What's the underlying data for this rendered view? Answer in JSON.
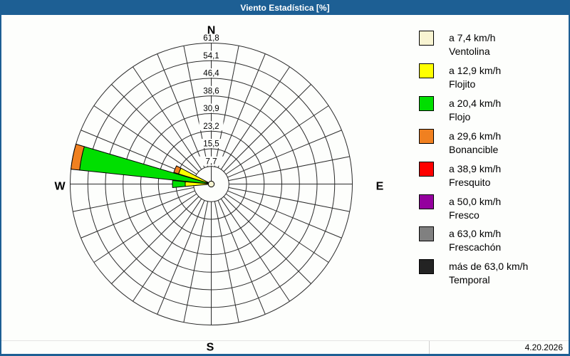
{
  "window": {
    "title": "Viento Estadística [%]",
    "status_date": "4.20.2026",
    "title_bar_color": "#1D5F94"
  },
  "chart_data": {
    "type": "wind-rose-polar",
    "title": "Viento Estadística [%]",
    "units": "%",
    "sectors": 32,
    "sector_width_deg": 11.25,
    "rings": 8,
    "radial_max": 61.8,
    "radial_tick_labels": [
      "7,7",
      "15,5",
      "23,2",
      "30,9",
      "38,6",
      "46,4",
      "54,1",
      "61,8"
    ],
    "compass_labels": {
      "north": "N",
      "east": "E",
      "south": "S",
      "west": "W"
    },
    "grid_color": "#2b2b2b",
    "petals": [
      {
        "direction": "WNW",
        "bearing_deg": 292.5,
        "segments": [
          {
            "bin": "Flojito",
            "color": "#FFFF00",
            "value": 15.0
          },
          {
            "bin": "Bonancible",
            "color": "#F08020",
            "value": 2.2
          }
        ]
      },
      {
        "direction": "WbN",
        "bearing_deg": 281.25,
        "segments": [
          {
            "bin": "Flojo",
            "color": "#00DF00",
            "value": 58.0
          },
          {
            "bin": "Bonancible",
            "color": "#F08020",
            "value": 3.8
          }
        ]
      },
      {
        "direction": "W",
        "bearing_deg": 270,
        "segments": [
          {
            "bin": "Flojito",
            "color": "#FFFF00",
            "value": 11.4
          },
          {
            "bin": "Flojo",
            "color": "#00DF00",
            "value": 5.6
          }
        ]
      }
    ],
    "center_marker": {
      "bin": "Ventolina",
      "color": "#F8F4D2",
      "value": 1.3
    }
  },
  "legend": {
    "items": [
      {
        "speed": "a 7,4 km/h",
        "name": "Ventolina",
        "color": "#F8F4D2"
      },
      {
        "speed": "a 12,9 km/h",
        "name": "Flojito",
        "color": "#FFFF00"
      },
      {
        "speed": "a 20,4 km/h",
        "name": "Flojo",
        "color": "#00DF00"
      },
      {
        "speed": "a 29,6 km/h",
        "name": "Bonancible",
        "color": "#F08020"
      },
      {
        "speed": "a 38,9 km/h",
        "name": "Fresquito",
        "color": "#FF0000"
      },
      {
        "speed": "a 50,0 km/h",
        "name": "Fresco",
        "color": "#94009E"
      },
      {
        "speed": "a 63,0 km/h",
        "name": "Frescachón",
        "color": "#808080"
      },
      {
        "speed": "más de 63,0 km/h",
        "name": "Temporal",
        "color": "#232323"
      }
    ]
  }
}
